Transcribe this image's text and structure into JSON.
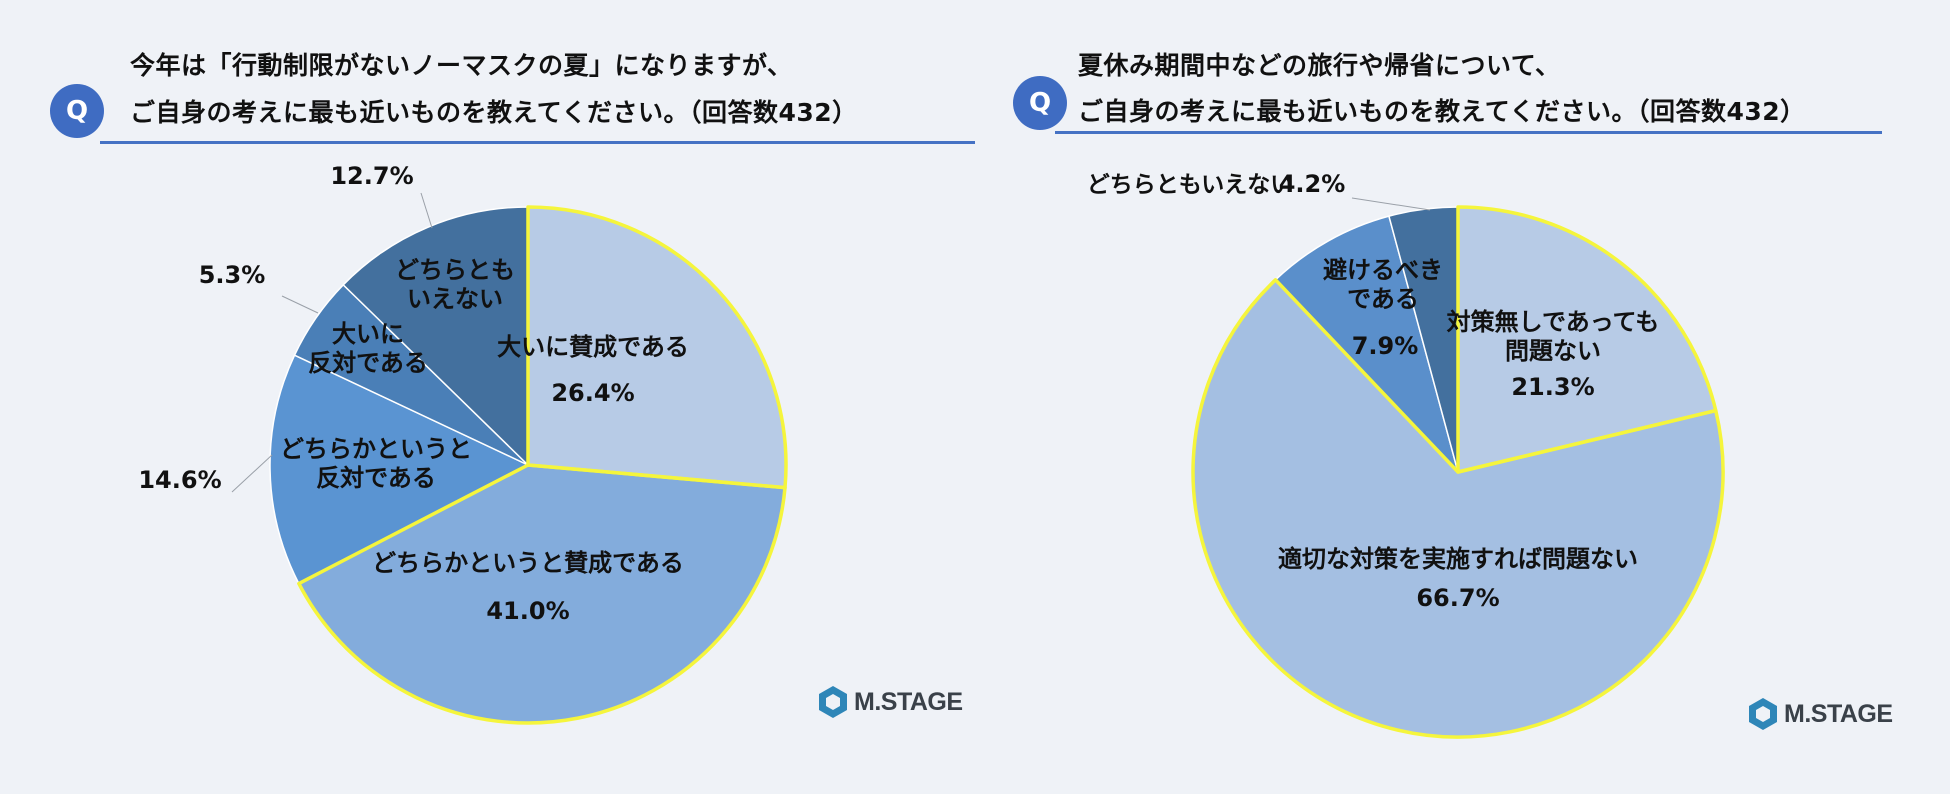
{
  "brand": {
    "badge": "Q",
    "logo": "M.STAGE"
  },
  "left": {
    "question_line1": "今年は「行動制限がないノーマスクの夏」になりますが、",
    "question_line2": "ご自身の考えに最も近いものを教えてください。（回答数432）"
  },
  "right": {
    "question_line1": "夏休み期間中などの旅行や帰省について、",
    "question_line2": "ご自身の考えに最も近いものを教えてください。（回答数432）"
  },
  "colors": {
    "accent": "#3f6cc2",
    "highlight_border": "#f5f53c"
  },
  "chart_data": [
    {
      "type": "pie",
      "title": "今年は「行動制限がないノーマスクの夏」になりますが、ご自身の考えに最も近いものを教えてください。（回答数432）",
      "slices": [
        {
          "label": "大いに賛成である",
          "value": 26.4,
          "value_label": "26.4%",
          "color": "#b7cbe6",
          "highlighted": true
        },
        {
          "label": "どちらかというと賛成である",
          "value": 41.0,
          "value_label": "41.0%",
          "color": "#83acdc",
          "highlighted": true
        },
        {
          "label": "どちらかというと反対である",
          "value": 14.6,
          "value_label": "14.6%",
          "color": "#5a94d2",
          "highlighted": false
        },
        {
          "label": "大いに反対である",
          "value": 5.3,
          "value_label": "5.3%",
          "color": "#4a7fb7",
          "highlighted": false
        },
        {
          "label": "どちらともいえない",
          "value": 12.7,
          "value_label": "12.7%",
          "color": "#43709e",
          "highlighted": false
        }
      ]
    },
    {
      "type": "pie",
      "title": "夏休み期間中などの旅行や帰省について、ご自身の考えに最も近いものを教えてください。（回答数432）",
      "slices": [
        {
          "label": "対策無しであっても問題ない",
          "value": 21.3,
          "value_label": "21.3%",
          "color": "#b7cbe6",
          "highlighted": true
        },
        {
          "label": "適切な対策を実施すれば問題ない",
          "value": 66.7,
          "value_label": "66.7%",
          "color": "#a4bfe2",
          "highlighted": true
        },
        {
          "label": "避けるべきである",
          "value": 7.9,
          "value_label": "7.9%",
          "color": "#5a8fcb",
          "highlighted": false
        },
        {
          "label": "どちらともいえない",
          "value": 4.2,
          "value_label": "4.2%",
          "color": "#43709e",
          "highlighted": false
        }
      ]
    }
  ]
}
